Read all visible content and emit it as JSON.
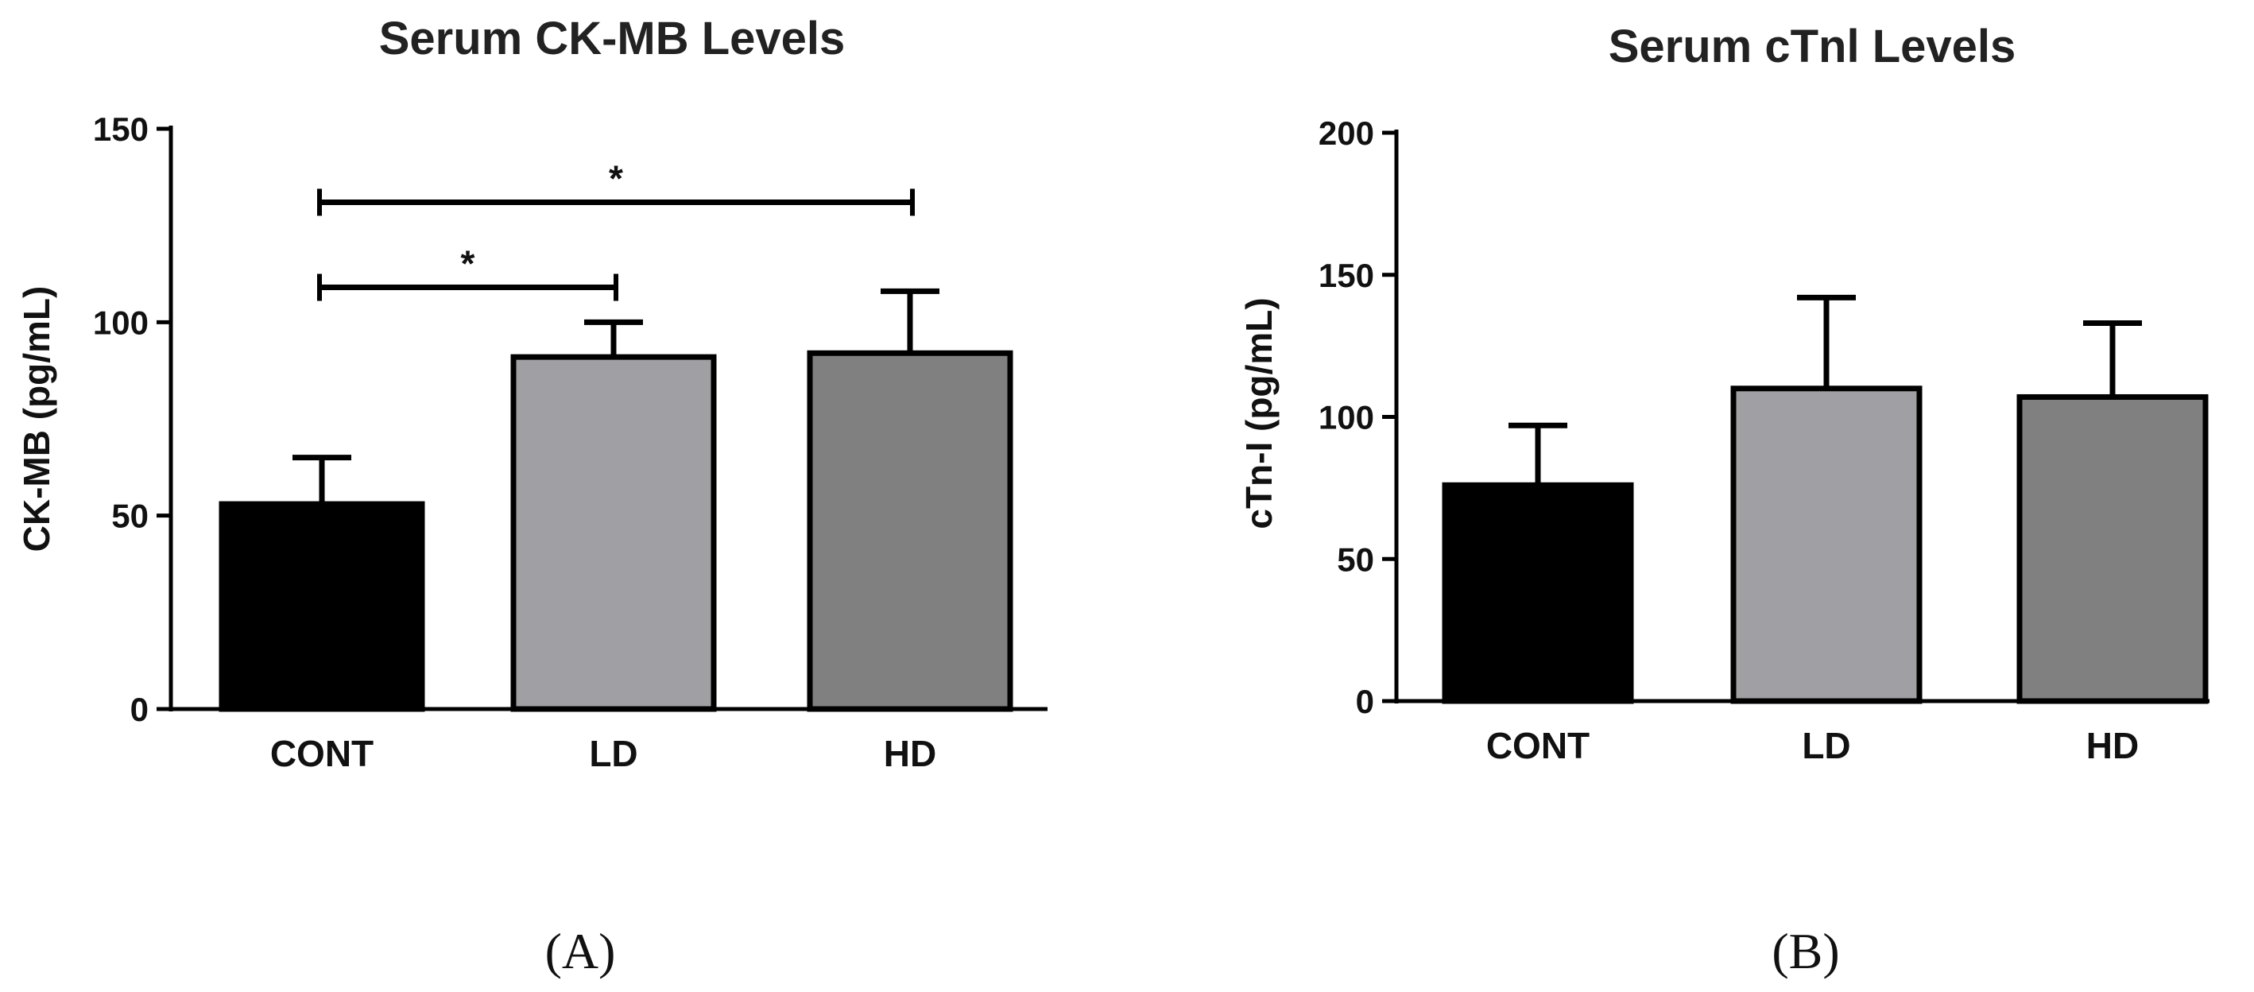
{
  "chart_data": [
    {
      "type": "bar",
      "title": "Serum CK-MB Levels",
      "xlabel": "",
      "ylabel": "CK-MB (pg/mL)",
      "ylim": [
        0,
        150
      ],
      "yticks": [
        0,
        50,
        100,
        150
      ],
      "categories": [
        "CONT",
        "LD",
        "HD"
      ],
      "values": [
        53,
        91,
        92
      ],
      "error_upper": [
        65,
        100,
        108
      ],
      "bar_colors": [
        "#000000",
        "#a0a0a4",
        "#808080"
      ],
      "significance": [
        {
          "from": "CONT",
          "to": "HD",
          "label": "*",
          "y": 131
        },
        {
          "from": "CONT",
          "to": "LD",
          "label": "*",
          "y": 109
        }
      ],
      "panel_label": "(A)",
      "grid": false
    },
    {
      "type": "bar",
      "title": "Serum cTnl Levels",
      "xlabel": "",
      "ylabel": "cTn-I (pg/mL)",
      "ylim": [
        0,
        200
      ],
      "yticks": [
        0,
        50,
        100,
        150,
        200
      ],
      "categories": [
        "CONT",
        "LD",
        "HD"
      ],
      "values": [
        76,
        110,
        107
      ],
      "error_upper": [
        97,
        142,
        133
      ],
      "bar_colors": [
        "#000000",
        "#a0a0a4",
        "#808080"
      ],
      "significance": [],
      "panel_label": "(B)",
      "grid": false
    }
  ]
}
